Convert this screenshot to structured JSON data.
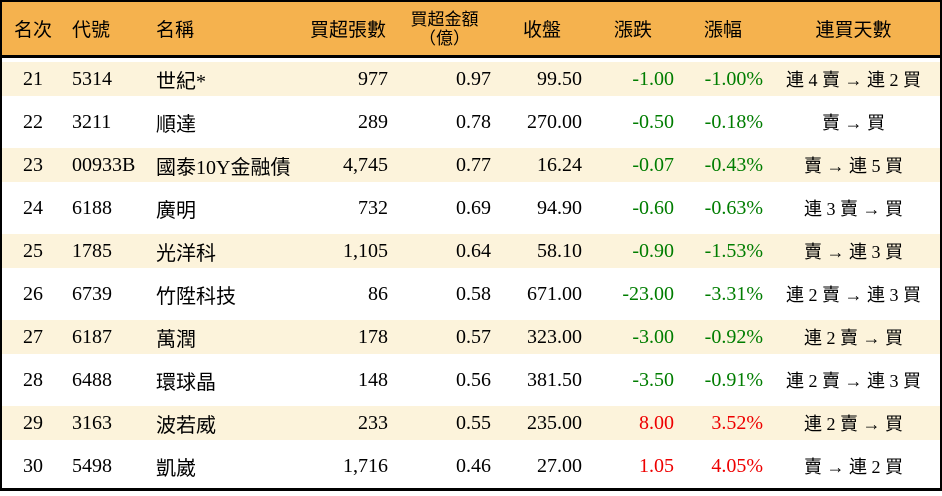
{
  "colors": {
    "header_bg": "#F5B24E",
    "row_alt_bg": "#FCF3DB",
    "negative_green": "#007D00",
    "positive_red": "#EE0000",
    "border": "#000000"
  },
  "chart_data": {
    "type": "table",
    "title": "",
    "legend_position": "none",
    "columns": [
      {
        "key": "rank",
        "label": "名次"
      },
      {
        "key": "code",
        "label": "代號"
      },
      {
        "key": "name",
        "label": "名稱"
      },
      {
        "key": "lots",
        "label": "買超張數"
      },
      {
        "key": "amount",
        "label": "買超金額",
        "label_line2": "（億）"
      },
      {
        "key": "close",
        "label": "收盤"
      },
      {
        "key": "change",
        "label": "漲跌"
      },
      {
        "key": "pct",
        "label": "漲幅"
      },
      {
        "key": "streak",
        "label": "連買天數"
      }
    ],
    "rows": [
      {
        "rank": "21",
        "code": "5314",
        "name": "世紀*",
        "lots": "977",
        "amount": "0.97",
        "close": "99.50",
        "change": "-1.00",
        "pct": "-1.00%",
        "streak": "連 4 賣 → 連 2 買",
        "direction": "down"
      },
      {
        "rank": "22",
        "code": "3211",
        "name": "順達",
        "lots": "289",
        "amount": "0.78",
        "close": "270.00",
        "change": "-0.50",
        "pct": "-0.18%",
        "streak": "賣 → 買",
        "direction": "down"
      },
      {
        "rank": "23",
        "code": "00933B",
        "name": "國泰10Y金融債",
        "lots": "4,745",
        "amount": "0.77",
        "close": "16.24",
        "change": "-0.07",
        "pct": "-0.43%",
        "streak": "賣 → 連 5 買",
        "direction": "down"
      },
      {
        "rank": "24",
        "code": "6188",
        "name": "廣明",
        "lots": "732",
        "amount": "0.69",
        "close": "94.90",
        "change": "-0.60",
        "pct": "-0.63%",
        "streak": "連 3 賣 → 買",
        "direction": "down"
      },
      {
        "rank": "25",
        "code": "1785",
        "name": "光洋科",
        "lots": "1,105",
        "amount": "0.64",
        "close": "58.10",
        "change": "-0.90",
        "pct": "-1.53%",
        "streak": "賣 → 連 3 買",
        "direction": "down"
      },
      {
        "rank": "26",
        "code": "6739",
        "name": "竹陞科技",
        "lots": "86",
        "amount": "0.58",
        "close": "671.00",
        "change": "-23.00",
        "pct": "-3.31%",
        "streak": "連 2 賣 → 連 3 買",
        "direction": "down"
      },
      {
        "rank": "27",
        "code": "6187",
        "name": "萬潤",
        "lots": "178",
        "amount": "0.57",
        "close": "323.00",
        "change": "-3.00",
        "pct": "-0.92%",
        "streak": "連 2 賣 → 買",
        "direction": "down"
      },
      {
        "rank": "28",
        "code": "6488",
        "name": "環球晶",
        "lots": "148",
        "amount": "0.56",
        "close": "381.50",
        "change": "-3.50",
        "pct": "-0.91%",
        "streak": "連 2 賣 → 連 3 買",
        "direction": "down"
      },
      {
        "rank": "29",
        "code": "3163",
        "name": "波若威",
        "lots": "233",
        "amount": "0.55",
        "close": "235.00",
        "change": "8.00",
        "pct": "3.52%",
        "streak": "連 2 賣 → 買",
        "direction": "up"
      },
      {
        "rank": "30",
        "code": "5498",
        "name": "凱崴",
        "lots": "1,716",
        "amount": "0.46",
        "close": "27.00",
        "change": "1.05",
        "pct": "4.05%",
        "streak": "賣 → 連 2 買",
        "direction": "up"
      }
    ]
  }
}
